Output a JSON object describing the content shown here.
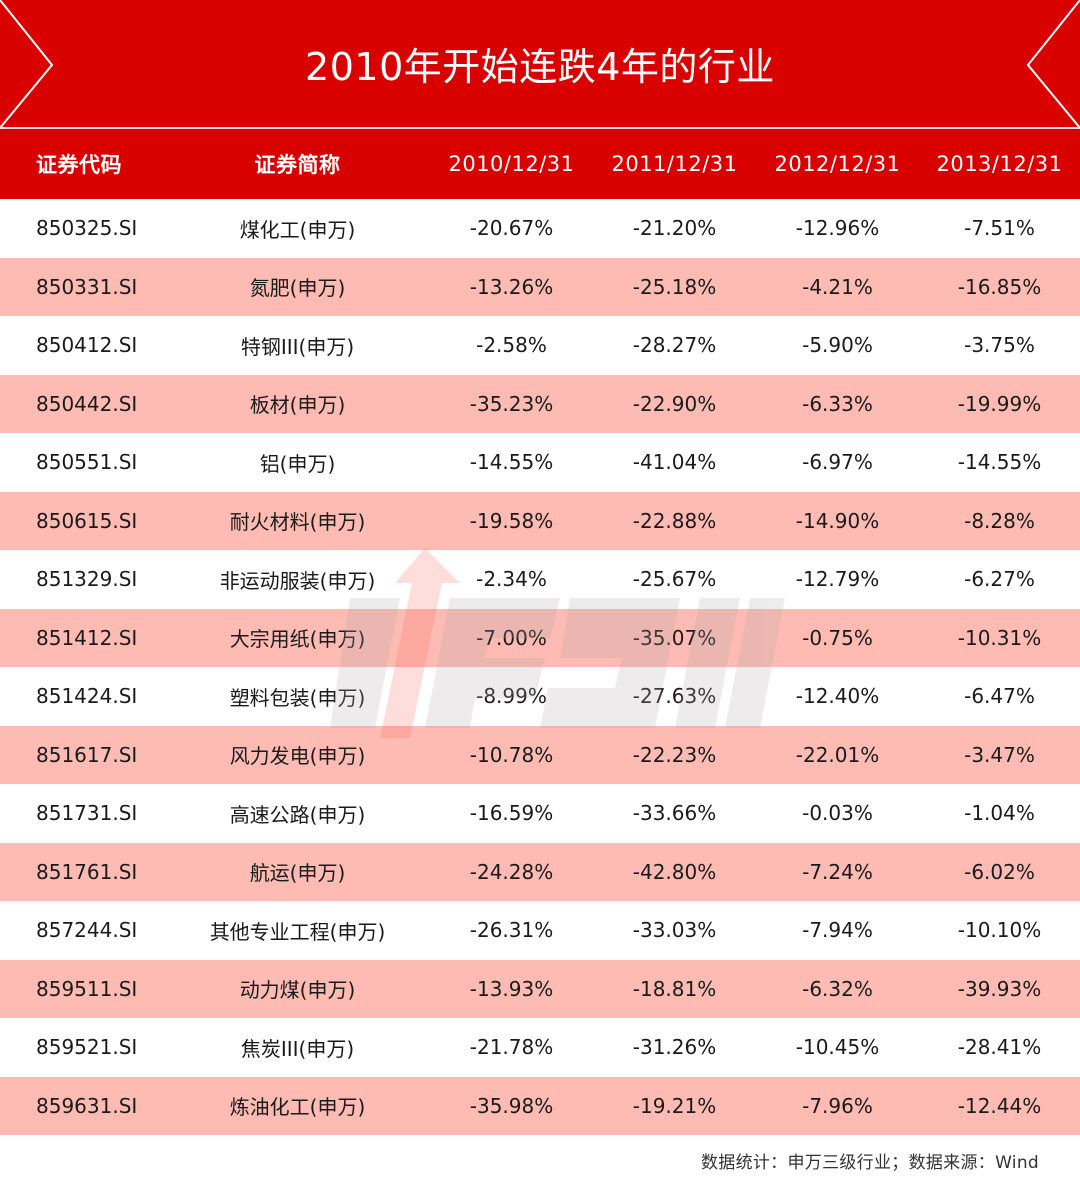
{
  "banner": {
    "title": "2010年开始连跌4年的行业",
    "background_color": "#d90000"
  },
  "table": {
    "headers": [
      "证券代码",
      "证券简称",
      "2010/12/31",
      "2011/12/31",
      "2012/12/31",
      "2013/12/31"
    ],
    "header_color": "#d90000",
    "stripe_color": "#fdbbb3",
    "rows": [
      [
        "850325.SI",
        "煤化工(申万)",
        "-20.67%",
        "-21.20%",
        "-12.96%",
        "-7.51%"
      ],
      [
        "850331.SI",
        "氮肥(申万)",
        "-13.26%",
        "-25.18%",
        "-4.21%",
        "-16.85%"
      ],
      [
        "850412.SI",
        "特钢III(申万)",
        "-2.58%",
        "-28.27%",
        "-5.90%",
        "-3.75%"
      ],
      [
        "850442.SI",
        "板材(申万)",
        "-35.23%",
        "-22.90%",
        "-6.33%",
        "-19.99%"
      ],
      [
        "850551.SI",
        "铝(申万)",
        "-14.55%",
        "-41.04%",
        "-6.97%",
        "-14.55%"
      ],
      [
        "850615.SI",
        "耐火材料(申万)",
        "-19.58%",
        "-22.88%",
        "-14.90%",
        "-8.28%"
      ],
      [
        "851329.SI",
        "非运动服装(申万)",
        "-2.34%",
        "-25.67%",
        "-12.79%",
        "-6.27%"
      ],
      [
        "851412.SI",
        "大宗用纸(申万)",
        "-7.00%",
        "-35.07%",
        "-0.75%",
        "-10.31%"
      ],
      [
        "851424.SI",
        "塑料包装(申万)",
        "-8.99%",
        "-27.63%",
        "-12.40%",
        "-6.47%"
      ],
      [
        "851617.SI",
        "风力发电(申万)",
        "-10.78%",
        "-22.23%",
        "-22.01%",
        "-3.47%"
      ],
      [
        "851731.SI",
        "高速公路(申万)",
        "-16.59%",
        "-33.66%",
        "-0.03%",
        "-1.04%"
      ],
      [
        "851761.SI",
        "航运(申万)",
        "-24.28%",
        "-42.80%",
        "-7.24%",
        "-6.02%"
      ],
      [
        "857244.SI",
        "其他专业工程(申万)",
        "-26.31%",
        "-33.03%",
        "-7.94%",
        "-10.10%"
      ],
      [
        "859511.SI",
        "动力煤(申万)",
        "-13.93%",
        "-18.81%",
        "-6.32%",
        "-39.93%"
      ],
      [
        "859521.SI",
        "焦炭III(申万)",
        "-21.78%",
        "-31.26%",
        "-10.45%",
        "-28.41%"
      ],
      [
        "859631.SI",
        "炼油化工(申万)",
        "-35.98%",
        "-19.21%",
        "-7.96%",
        "-12.44%"
      ]
    ]
  },
  "footer": {
    "note": "数据统计：申万三级行业；数据来源：Wind"
  },
  "watermark": {
    "icon": "up-arrow-logo-watermark"
  }
}
